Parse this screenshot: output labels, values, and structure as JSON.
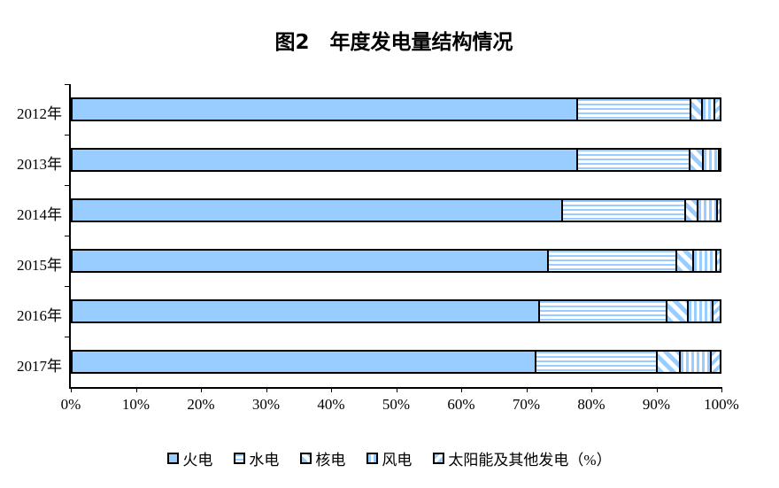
{
  "title": "图2　年度发电量结构情况",
  "colors": {
    "segment_fill": "#99CCFF",
    "segment_border": "#000000",
    "axis": "#000000",
    "background": "#FFFFFF"
  },
  "chart_data": {
    "type": "bar",
    "variant": "horizontal-stacked-percentage",
    "title": "图2　年度发电量结构情况",
    "categories": [
      "2012年",
      "2013年",
      "2014年",
      "2015年",
      "2016年",
      "2017年"
    ],
    "series": [
      {
        "name": "火电",
        "pattern": "solid",
        "values": [
          77.8,
          77.9,
          75.5,
          73.3,
          71.9,
          71.4
        ]
      },
      {
        "name": "水电",
        "pattern": "horizontal-stripes",
        "values": [
          17.5,
          17.4,
          19.0,
          19.9,
          19.7,
          18.7
        ]
      },
      {
        "name": "核电",
        "pattern": "diagonal-down-stripes",
        "values": [
          1.8,
          2.0,
          2.0,
          2.5,
          3.3,
          3.6
        ]
      },
      {
        "name": "风电",
        "pattern": "vertical-stripes",
        "values": [
          2.0,
          2.5,
          3.0,
          3.6,
          3.9,
          4.8
        ]
      },
      {
        "name": "太阳能及其他发电（%）",
        "pattern": "diagonal-up-stripes",
        "values": [
          0.9,
          0.2,
          0.5,
          0.7,
          1.2,
          1.5
        ]
      }
    ],
    "xlabel": "",
    "ylabel": "",
    "xlim": [
      0,
      100
    ],
    "x_ticks": [
      "0%",
      "10%",
      "20%",
      "30%",
      "40%",
      "50%",
      "60%",
      "70%",
      "80%",
      "90%",
      "100%"
    ],
    "grid": false,
    "legend_position": "bottom"
  }
}
